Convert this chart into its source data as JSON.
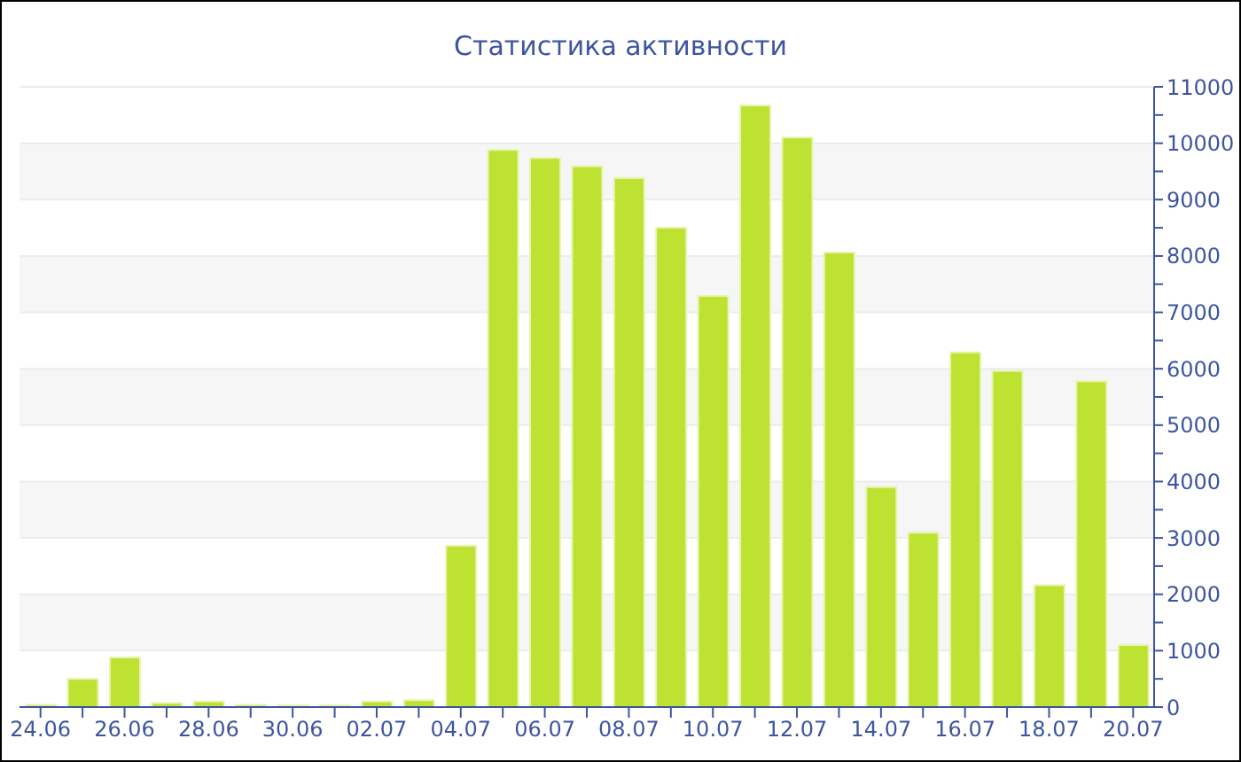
{
  "chart_data": {
    "type": "bar",
    "title": "Статистика активности",
    "categories": [
      "24.06",
      null,
      "26.06",
      null,
      "28.06",
      null,
      "30.06",
      null,
      "02.07",
      null,
      "04.07",
      null,
      "06.07",
      null,
      "08.07",
      null,
      "10.07",
      null,
      "12.07",
      null,
      "14.07",
      null,
      "16.07",
      null,
      "18.07",
      null,
      "20.07"
    ],
    "values": [
      40,
      500,
      880,
      70,
      100,
      40,
      30,
      30,
      100,
      120,
      2860,
      9880,
      9740,
      9590,
      9380,
      8500,
      7290,
      10670,
      10100,
      8060,
      3900,
      3090,
      6290,
      5960,
      2160,
      5780,
      1100
    ],
    "color": "#bde232",
    "ylim": [
      0,
      11000
    ],
    "yticks": [
      0,
      {
        "value": 500,
        "label": null
      },
      1000,
      {
        "value": 1500,
        "label": null
      },
      2000,
      {
        "value": 2500,
        "label": null
      },
      3000,
      {
        "value": 3500,
        "label": null
      },
      4000,
      {
        "value": 4500,
        "label": null
      },
      5000,
      {
        "value": 5500,
        "label": null
      },
      6000,
      {
        "value": 6500,
        "label": null
      },
      7000,
      {
        "value": 7500,
        "label": null
      },
      8000,
      {
        "value": 8500,
        "label": null
      },
      9000,
      {
        "value": 9500,
        "label": null
      },
      10000,
      {
        "value": 10500,
        "label": null
      },
      11000
    ],
    "grid": "y"
  }
}
